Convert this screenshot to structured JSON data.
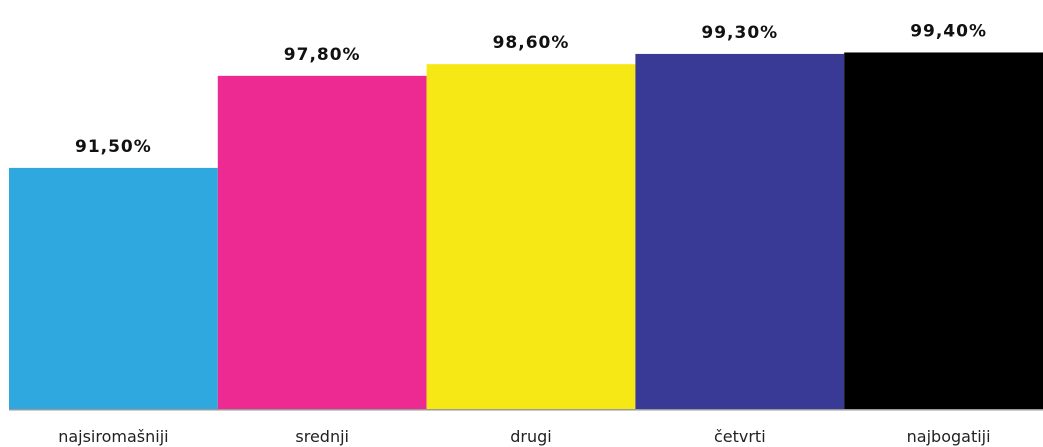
{
  "chart_data": {
    "type": "bar",
    "title": "",
    "xlabel": "",
    "ylabel": "",
    "categories": [
      "najsiromašniji",
      "srednji",
      "drugi",
      "četvrti",
      "najbogatiji"
    ],
    "values": [
      91.5,
      97.8,
      98.6,
      99.3,
      99.4
    ],
    "value_labels": [
      "91,50%",
      "97,80%",
      "98,60%",
      "99,30%",
      "99,40%"
    ],
    "colors": [
      "#2fa8e0",
      "#ed2a91",
      "#f5e814",
      "#393a96",
      "#000000"
    ],
    "ylim": [
      75,
      100
    ],
    "grid": false,
    "legend": "none"
  }
}
